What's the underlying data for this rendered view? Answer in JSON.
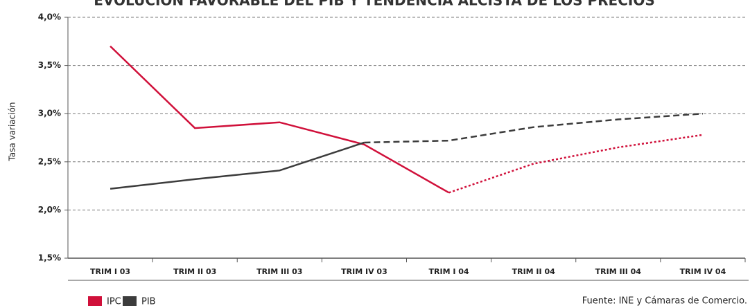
{
  "chart_data": {
    "type": "line",
    "title": "EVOLUCIÓN FAVORABLE DEL PIB Y TENDENCIA ALCISTA DE LOS PRECIOS",
    "y_label": "Tasa variación",
    "source": "Fuente: INE y Cámaras de Comercio.",
    "categories": [
      "TRIM I 03",
      "TRIM II 03",
      "TRIM III 03",
      "TRIM IV 03",
      "TRIM I 04",
      "TRIM II 04",
      "TRIM III 04",
      "TRIM IV 04"
    ],
    "series": [
      {
        "name": "IPC",
        "color": "#d0103a",
        "dashed_from": 4,
        "values": [
          3.7,
          2.85,
          2.91,
          2.68,
          2.18,
          2.48,
          2.65,
          2.78
        ]
      },
      {
        "name": "PIB",
        "color": "#3c3c3c",
        "dashed_from": 3,
        "values": [
          2.22,
          2.32,
          2.41,
          2.7,
          2.72,
          2.86,
          2.94,
          3.0
        ]
      }
    ],
    "ylim": [
      1.5,
      4.0
    ],
    "yticks": [
      {
        "value": 1.5,
        "label": "1,5%"
      },
      {
        "value": 2.0,
        "label": "2,0%"
      },
      {
        "value": 2.5,
        "label": "2,5%"
      },
      {
        "value": 3.0,
        "label": "3,0%"
      },
      {
        "value": 3.5,
        "label": "3,5%"
      },
      {
        "value": 4.0,
        "label": "4,0%"
      }
    ],
    "grid": true,
    "legend": "bottom-left"
  }
}
